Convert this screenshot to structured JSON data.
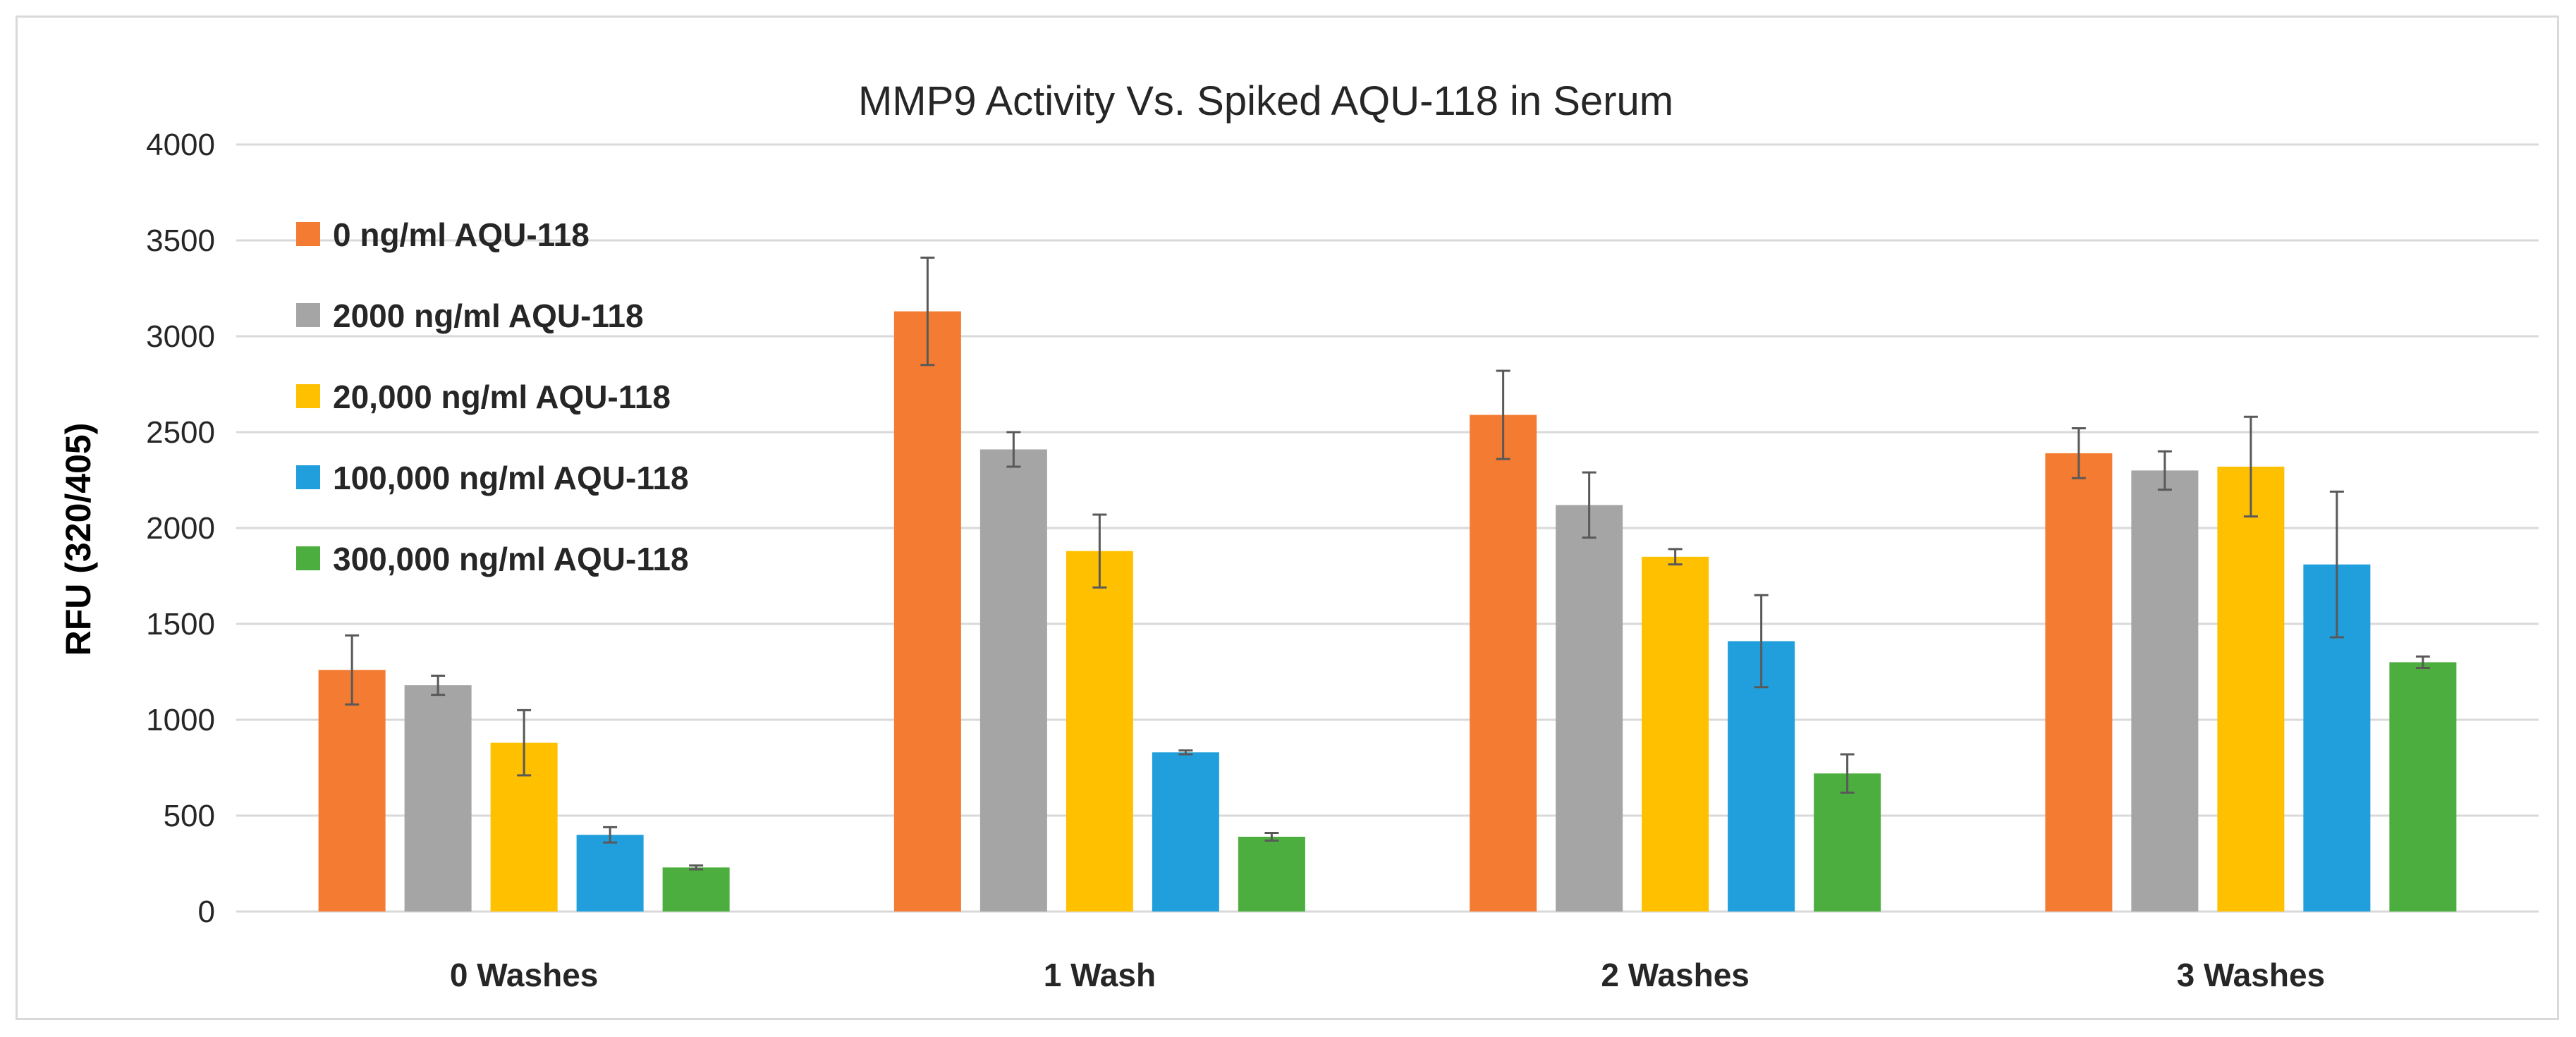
{
  "chart_data": {
    "type": "bar",
    "title": "MMP9 Activity Vs. Spiked AQU-118 in Serum",
    "xlabel": "",
    "ylabel": "RFU (320/405)",
    "ylim": [
      0,
      4000
    ],
    "yticks": [
      0,
      500,
      1000,
      1500,
      2000,
      2500,
      3000,
      3500,
      4000
    ],
    "grid": true,
    "legend_position": "top-left",
    "categories": [
      "0 Washes",
      "1 Wash",
      "2 Washes",
      "3 Washes"
    ],
    "series": [
      {
        "name": "0 ng/ml AQU-118",
        "color": "#f47b32",
        "values": [
          1260,
          3130,
          2590,
          2390
        ],
        "errors": [
          180,
          280,
          230,
          130
        ]
      },
      {
        "name": "2000 ng/ml AQU-118",
        "color": "#a5a5a5",
        "values": [
          1180,
          2410,
          2120,
          2300
        ],
        "errors": [
          50,
          90,
          170,
          100
        ]
      },
      {
        "name": "20,000 ng/ml AQU-118",
        "color": "#ffc000",
        "values": [
          880,
          1880,
          1850,
          2320
        ],
        "errors": [
          170,
          190,
          40,
          260
        ]
      },
      {
        "name": "100,000 ng/ml AQU-118",
        "color": "#209fdc",
        "values": [
          400,
          830,
          1410,
          1810
        ],
        "errors": [
          40,
          10,
          240,
          380
        ]
      },
      {
        "name": "300,000 ng/ml AQU-118",
        "color": "#4cae3e",
        "values": [
          230,
          390,
          720,
          1300
        ],
        "errors": [
          10,
          20,
          100,
          30
        ]
      }
    ]
  }
}
